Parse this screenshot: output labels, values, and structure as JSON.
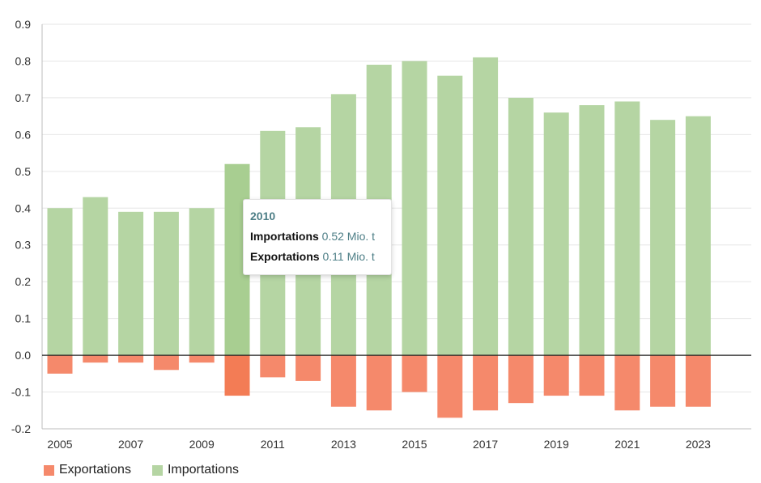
{
  "chart_data": {
    "type": "bar",
    "categories": [
      "2005",
      "2006",
      "2007",
      "2008",
      "2009",
      "2010",
      "2011",
      "2012",
      "2013",
      "2014",
      "2015",
      "2016",
      "2017",
      "2018",
      "2019",
      "2020",
      "2021",
      "2022",
      "2023"
    ],
    "xtick_labels": [
      "2005",
      "2007",
      "2009",
      "2011",
      "2013",
      "2015",
      "2017",
      "2019",
      "2021",
      "2023"
    ],
    "series": [
      {
        "name": "Exportations",
        "color": "#f5896b",
        "values": [
          -0.05,
          -0.02,
          -0.02,
          -0.04,
          -0.02,
          -0.11,
          -0.06,
          -0.07,
          -0.14,
          -0.15,
          -0.1,
          -0.17,
          -0.15,
          -0.13,
          -0.11,
          -0.11,
          -0.15,
          -0.14,
          -0.14
        ]
      },
      {
        "name": "Importations",
        "color": "#b5d5a3",
        "values": [
          0.4,
          0.43,
          0.39,
          0.39,
          0.4,
          0.52,
          0.61,
          0.62,
          0.71,
          0.79,
          0.8,
          0.76,
          0.81,
          0.7,
          0.66,
          0.68,
          0.69,
          0.64,
          0.65
        ]
      }
    ],
    "ylim": [
      -0.2,
      0.9
    ],
    "yticks": [
      "0.9",
      "0.8",
      "0.7",
      "0.6",
      "0.5",
      "0.4",
      "0.3",
      "0.2",
      "0.1",
      "0.0",
      "-0.1",
      "-0.2"
    ],
    "highlight_index": 5,
    "highlight_colors": {
      "Exportations": "#f37c55",
      "Importations": "#a8ce91"
    },
    "grid": true,
    "legend_position": "bottom-left"
  },
  "tooltip": {
    "title": "2010",
    "rows": [
      {
        "name": "Importations",
        "value": "0.52 Mio. t"
      },
      {
        "name": "Exportations",
        "value": "0.11 Mio. t"
      }
    ]
  },
  "legend": [
    {
      "label": "Exportations",
      "color": "#f5896b"
    },
    {
      "label": "Importations",
      "color": "#b5d5a3"
    }
  ]
}
